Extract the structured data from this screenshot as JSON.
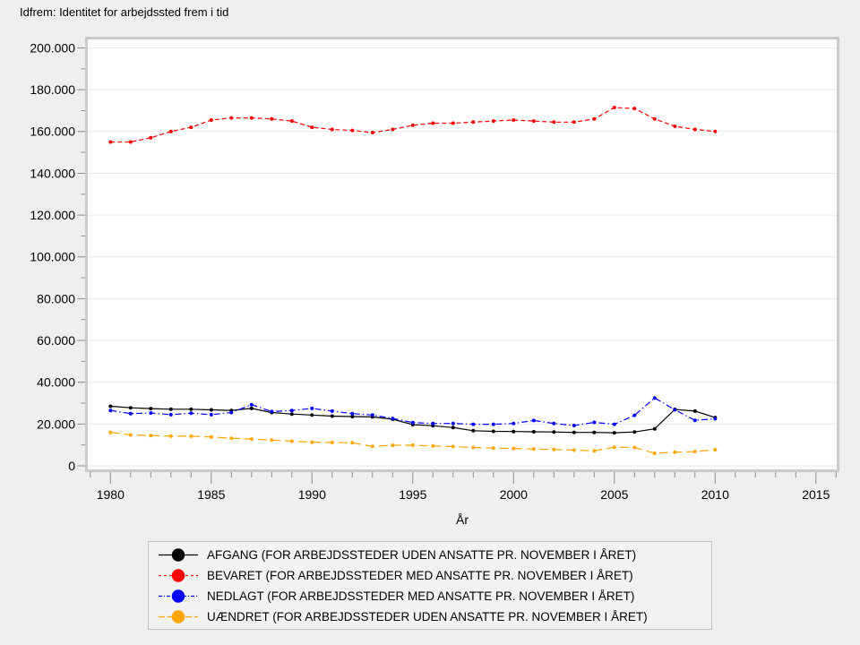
{
  "chart_data": {
    "type": "line",
    "title": "Idfrem: Identitet for arbejdssted frem i tid",
    "xlabel": "År",
    "ylabel": "",
    "ylim": [
      0,
      200000
    ],
    "grid": "horizontal",
    "legend_position": "bottom",
    "x_tick_labels": [
      "1980",
      "1985",
      "1990",
      "1995",
      "2000",
      "2005",
      "2010",
      "2015"
    ],
    "y_tick_labels": [
      "0",
      "20.000",
      "40.000",
      "60.000",
      "80.000",
      "100.000",
      "120.000",
      "140.000",
      "160.000",
      "180.000",
      "200.000"
    ],
    "x": [
      1980,
      1981,
      1982,
      1983,
      1984,
      1985,
      1986,
      1987,
      1988,
      1989,
      1990,
      1991,
      1992,
      1993,
      1994,
      1995,
      1996,
      1997,
      1998,
      1999,
      2000,
      2001,
      2002,
      2003,
      2004,
      2005,
      2006,
      2007,
      2008,
      2009,
      2010
    ],
    "series": [
      {
        "name": "afgang",
        "label": "AFGANG (FOR ARBEJDSSTEDER UDEN ANSATTE PR. NOVEMBER I ÅRET)",
        "color": "#000000",
        "dash": "solid",
        "values": [
          28500,
          27800,
          27400,
          27100,
          27100,
          26800,
          26500,
          27500,
          25500,
          24800,
          24300,
          23800,
          23600,
          23400,
          22300,
          19700,
          19200,
          18300,
          16800,
          16500,
          16400,
          16300,
          16200,
          16000,
          16000,
          15800,
          16200,
          17700,
          27000,
          26200,
          23100
        ]
      },
      {
        "name": "bevaret",
        "label": "BEVARET (FOR ARBEJDSSTEDER MED ANSATTE PR. NOVEMBER I ÅRET)",
        "color": "#ff0000",
        "dash": "dash",
        "values": [
          155000,
          155000,
          157000,
          160000,
          162000,
          165500,
          166500,
          166500,
          166000,
          165000,
          162000,
          161000,
          160500,
          159500,
          161000,
          163000,
          164000,
          164000,
          164500,
          165000,
          165500,
          165000,
          164500,
          164500,
          166000,
          171500,
          171000,
          166000,
          162500,
          161000,
          160000
        ]
      },
      {
        "name": "nedlagt",
        "label": "NEDLAGT (FOR ARBEJDSSTEDER MED ANSATTE PR. NOVEMBER I ÅRET)",
        "color": "#0000ff",
        "dash": "dashdot",
        "values": [
          26500,
          25000,
          25300,
          24500,
          25200,
          24500,
          25500,
          29300,
          26000,
          26500,
          27500,
          26200,
          25000,
          24300,
          22700,
          20700,
          20300,
          20300,
          19900,
          19900,
          20300,
          21700,
          20300,
          19300,
          20800,
          19900,
          24200,
          32500,
          26800,
          21800,
          22500
        ]
      },
      {
        "name": "uaendret",
        "label": "UÆNDRET (FOR ARBEJDSSTEDER UDEN ANSATTE PR. NOVEMBER I ÅRET)",
        "color": "#ffa500",
        "dash": "longdash",
        "values": [
          16000,
          14800,
          14500,
          14200,
          14200,
          13800,
          13200,
          12800,
          12300,
          11800,
          11300,
          11200,
          11000,
          9300,
          9800,
          9900,
          9500,
          9200,
          8800,
          8500,
          8300,
          8000,
          7800,
          7500,
          7200,
          8900,
          8800,
          6000,
          6500,
          6800,
          7700
        ]
      }
    ]
  },
  "colors": {
    "page_background": "#efefef",
    "plot_background": "#ffffff",
    "plot_frame": "#cbcbcb",
    "gridline": "#e9e9e9",
    "tick": "#8c8c8c",
    "text": "#000000",
    "legend_background": "#f2f2f2",
    "legend_border": "#c2c2c2"
  }
}
